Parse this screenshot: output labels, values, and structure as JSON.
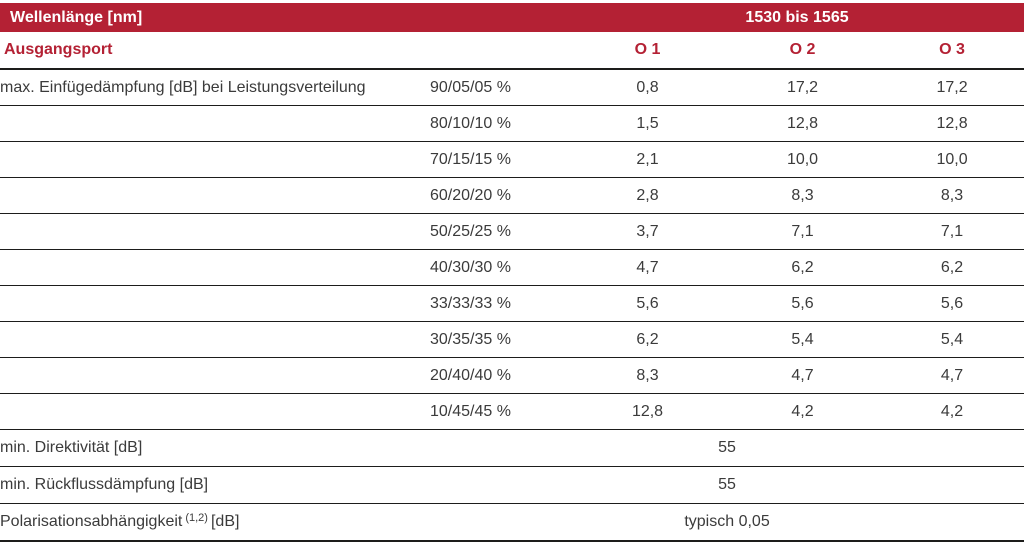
{
  "colors": {
    "accent_red": "#b42134",
    "header_text": "#ffffff",
    "body_text": "#3b3b3b",
    "rule_line": "#1d1d1b"
  },
  "table": {
    "header": {
      "wavelength_label": "Wellenlänge [nm]",
      "wavelength_value": "1530 bis 1565"
    },
    "ports_row": {
      "label": "Ausgangsport",
      "o1": "O 1",
      "o2": "O 2",
      "o3": "O 3"
    },
    "insertion_loss": {
      "label": "max. Einfügedämpfung [dB] bei Leistungsverteilung",
      "rows": [
        {
          "split": "90/05/05 %",
          "o1": "0,8",
          "o2": "17,2",
          "o3": "17,2"
        },
        {
          "split": "80/10/10 %",
          "o1": "1,5",
          "o2": "12,8",
          "o3": "12,8"
        },
        {
          "split": "70/15/15 %",
          "o1": "2,1",
          "o2": "10,0",
          "o3": "10,0"
        },
        {
          "split": "60/20/20 %",
          "o1": "2,8",
          "o2": "8,3",
          "o3": "8,3"
        },
        {
          "split": "50/25/25 %",
          "o1": "3,7",
          "o2": "7,1",
          "o3": "7,1"
        },
        {
          "split": "40/30/30 %",
          "o1": "4,7",
          "o2": "6,2",
          "o3": "6,2"
        },
        {
          "split": "33/33/33 %",
          "o1": "5,6",
          "o2": "5,6",
          "o3": "5,6"
        },
        {
          "split": "30/35/35 %",
          "o1": "6,2",
          "o2": "5,4",
          "o3": "5,4"
        },
        {
          "split": "20/40/40 %",
          "o1": "8,3",
          "o2": "4,7",
          "o3": "4,7"
        },
        {
          "split": "10/45/45 %",
          "o1": "12,8",
          "o2": "4,2",
          "o3": "4,2"
        }
      ]
    },
    "summary_rows": {
      "directivity": {
        "label": "min. Direktivität [dB]",
        "value": "55"
      },
      "return_loss": {
        "label": "min. Rückflussdämpfung [dB]",
        "value": "55"
      },
      "polarization": {
        "label_prefix": "Polarisationsabhängigkeit",
        "footnote": "(1,2)",
        "label_suffix": "[dB]",
        "value": "typisch 0,05"
      }
    }
  }
}
